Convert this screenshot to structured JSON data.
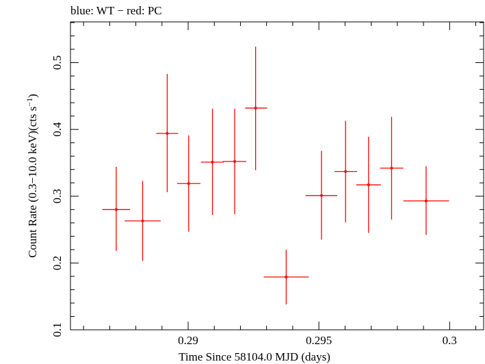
{
  "chart_data": {
    "type": "scatter",
    "title": "blue: WT − red: PC",
    "xlabel": "Time Since 58104.0 MJD (days)",
    "ylabel_main": "Count Rate (0.3−10.0 keV)(cts s",
    "ylabel_sup": "−1",
    "ylabel_close": ")",
    "xlim": [
      0.2855,
      0.3013
    ],
    "ylim": [
      0.1,
      0.561
    ],
    "x_ticks": [
      {
        "value": 0.29,
        "label": "0.29"
      },
      {
        "value": 0.295,
        "label": "0.295"
      },
      {
        "value": 0.3,
        "label": "0.3"
      }
    ],
    "x_minor_step": 0.001,
    "y_ticks": [
      {
        "value": 0.1,
        "label": "0.1"
      },
      {
        "value": 0.2,
        "label": "0.2"
      },
      {
        "value": 0.3,
        "label": "0.3"
      },
      {
        "value": 0.4,
        "label": "0.4"
      },
      {
        "value": 0.5,
        "label": "0.5"
      }
    ],
    "y_minor_step": 0.02,
    "grid": false,
    "series": [
      {
        "color": "#ff0000",
        "points": [
          {
            "x": 0.28725,
            "xerr": [
              0.28672,
              0.28778
            ],
            "y": 0.28,
            "yerr": [
              0.218,
              0.344
            ]
          },
          {
            "x": 0.28826,
            "xerr": [
              0.28757,
              0.28895
            ],
            "y": 0.263,
            "yerr": [
              0.203,
              0.323
            ]
          },
          {
            "x": 0.2892,
            "xerr": [
              0.28878,
              0.28962
            ],
            "y": 0.394,
            "yerr": [
              0.306,
              0.483
            ]
          },
          {
            "x": 0.29002,
            "xerr": [
              0.28958,
              0.29047
            ],
            "y": 0.319,
            "yerr": [
              0.247,
              0.391
            ]
          },
          {
            "x": 0.29093,
            "xerr": [
              0.29049,
              0.29136
            ],
            "y": 0.351,
            "yerr": [
              0.272,
              0.431
            ]
          },
          {
            "x": 0.29178,
            "xerr": [
              0.29133,
              0.29222
            ],
            "y": 0.352,
            "yerr": [
              0.273,
              0.431
            ]
          },
          {
            "x": 0.29258,
            "xerr": [
              0.29218,
              0.29302
            ],
            "y": 0.432,
            "yerr": [
              0.339,
              0.524
            ]
          },
          {
            "x": 0.29375,
            "xerr": [
              0.29289,
              0.29461
            ],
            "y": 0.179,
            "yerr": [
              0.138,
              0.22
            ]
          },
          {
            "x": 0.2951,
            "xerr": [
              0.29449,
              0.2957
            ],
            "y": 0.301,
            "yerr": [
              0.235,
              0.368
            ]
          },
          {
            "x": 0.29602,
            "xerr": [
              0.2956,
              0.29646
            ],
            "y": 0.337,
            "yerr": [
              0.261,
              0.413
            ]
          },
          {
            "x": 0.2969,
            "xerr": [
              0.29643,
              0.29737
            ],
            "y": 0.317,
            "yerr": [
              0.245,
              0.389
            ]
          },
          {
            "x": 0.29778,
            "xerr": [
              0.29734,
              0.29823
            ],
            "y": 0.342,
            "yerr": [
              0.265,
              0.419
            ]
          },
          {
            "x": 0.2991,
            "xerr": [
              0.29823,
              0.29998
            ],
            "y": 0.293,
            "yerr": [
              0.242,
              0.345
            ]
          }
        ]
      }
    ]
  }
}
